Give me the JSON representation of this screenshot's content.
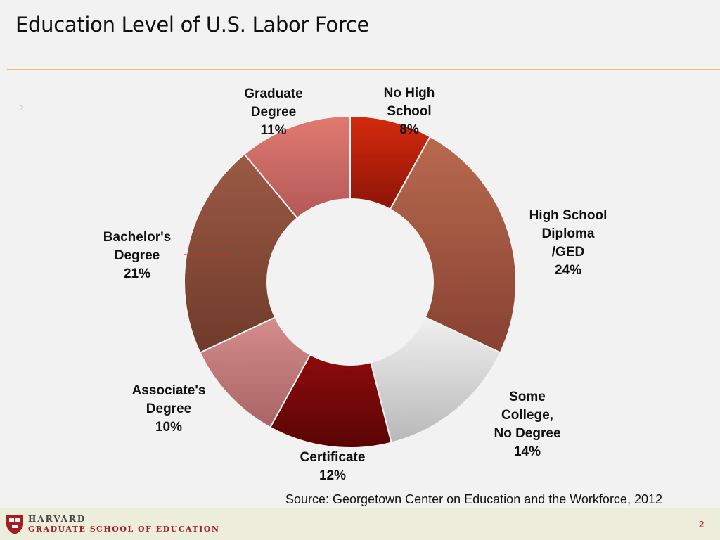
{
  "slide": {
    "title": "Education Level of U.S. Labor Force",
    "small_mark": "2",
    "source": "Source: Georgetown Center on Education and the Workforce, 2012",
    "page_number": "2"
  },
  "footer": {
    "logo_line1": "HARVARD",
    "logo_line2": "GRADUATE SCHOOL OF EDUCATION"
  },
  "chart_data": {
    "type": "pie",
    "donut": true,
    "title": "",
    "slices": [
      {
        "label": [
          "No High",
          "School",
          "8%"
        ],
        "value": 8,
        "color_light": "#d42a0e",
        "color_dark": "#8e1407"
      },
      {
        "label": [
          "High School",
          "Diploma",
          "/GED",
          "24%"
        ],
        "value": 24,
        "color_light": "#b86a4e",
        "color_dark": "#874132"
      },
      {
        "label": [
          "Some",
          "College,",
          "No Degree",
          "14%"
        ],
        "value": 14,
        "color_light": "#f0f0f0",
        "color_dark": "#b8b8b8"
      },
      {
        "label": [
          "Certificate",
          "12%"
        ],
        "value": 12,
        "color_light": "#8e0c0c",
        "color_dark": "#5a0404"
      },
      {
        "label": [
          "Associate's",
          "Degree",
          "10%"
        ],
        "value": 10,
        "color_light": "#d58c8c",
        "color_dark": "#a86464"
      },
      {
        "label": [
          "Bachelor's",
          "Degree",
          "21%"
        ],
        "value": 21,
        "color_light": "#9b5a45",
        "color_dark": "#6f3a2a"
      },
      {
        "label": [
          "Graduate",
          "Degree",
          "11%"
        ],
        "value": 11,
        "color_light": "#e07a70",
        "color_dark": "#b35858"
      }
    ]
  }
}
